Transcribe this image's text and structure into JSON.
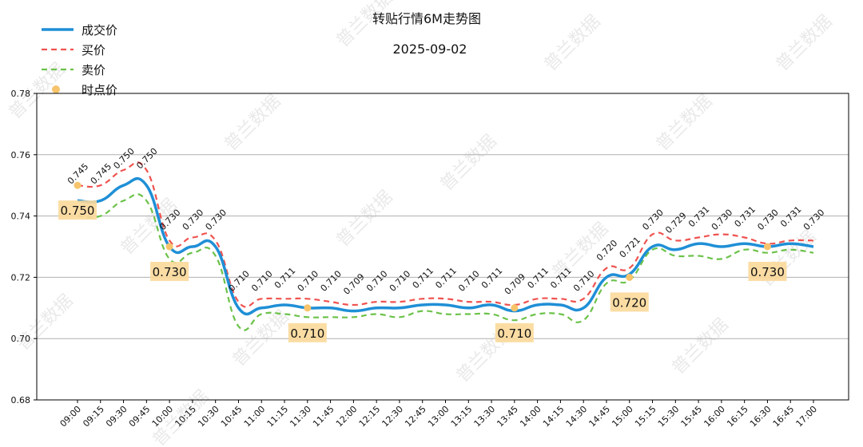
{
  "chart_data": {
    "type": "line",
    "title": "转贴行情6M走势图",
    "subtitle": "2025-09-02",
    "watermark": "普兰数据",
    "ylim": [
      0.68,
      0.78
    ],
    "yticks": [
      "0.68",
      "0.70",
      "0.72",
      "0.74",
      "0.76",
      "0.78"
    ],
    "grid": "horizontal",
    "legend_position": "top-left",
    "categories": [
      "09:00",
      "09:15",
      "09:30",
      "09:45",
      "10:00",
      "10:15",
      "10:30",
      "10:45",
      "11:00",
      "11:15",
      "11:30",
      "11:45",
      "12:00",
      "12:15",
      "12:30",
      "12:45",
      "13:00",
      "13:15",
      "13:30",
      "13:45",
      "14:00",
      "14:15",
      "14:30",
      "14:45",
      "15:00",
      "15:15",
      "15:30",
      "15:45",
      "16:00",
      "16:15",
      "16:30",
      "16:45",
      "17:00"
    ],
    "series": [
      {
        "name": "成交价",
        "style": "solid",
        "color": "#1f8fd6",
        "values": [
          0.745,
          0.745,
          0.75,
          0.75,
          0.73,
          0.73,
          0.73,
          0.71,
          0.71,
          0.711,
          0.71,
          0.71,
          0.709,
          0.71,
          0.71,
          0.711,
          0.711,
          0.71,
          0.711,
          0.709,
          0.711,
          0.711,
          0.71,
          0.72,
          0.721,
          0.73,
          0.729,
          0.731,
          0.73,
          0.731,
          0.73,
          0.731,
          0.73
        ]
      },
      {
        "name": "买价",
        "style": "dashed",
        "color": "#ef5350",
        "values": [
          0.75,
          0.75,
          0.755,
          0.755,
          0.732,
          0.733,
          0.732,
          0.712,
          0.713,
          0.713,
          0.713,
          0.712,
          0.711,
          0.712,
          0.712,
          0.713,
          0.713,
          0.712,
          0.712,
          0.711,
          0.713,
          0.713,
          0.713,
          0.723,
          0.723,
          0.734,
          0.732,
          0.733,
          0.734,
          0.733,
          0.731,
          0.732,
          0.732
        ]
      },
      {
        "name": "卖价",
        "style": "dashed",
        "color": "#6cc24a",
        "values": [
          0.74,
          0.74,
          0.745,
          0.745,
          0.726,
          0.728,
          0.727,
          0.704,
          0.708,
          0.708,
          0.707,
          0.707,
          0.707,
          0.708,
          0.707,
          0.709,
          0.708,
          0.708,
          0.708,
          0.706,
          0.708,
          0.708,
          0.706,
          0.718,
          0.719,
          0.729,
          0.727,
          0.727,
          0.726,
          0.729,
          0.728,
          0.729,
          0.728
        ]
      }
    ],
    "point_series": {
      "name": "时点价",
      "color": "#f7c46c",
      "points": [
        {
          "x": "09:00",
          "y": 0.75,
          "label": "0.750"
        },
        {
          "x": "10:00",
          "y": 0.73,
          "label": "0.730"
        },
        {
          "x": "11:30",
          "y": 0.71,
          "label": "0.710"
        },
        {
          "x": "13:45",
          "y": 0.71,
          "label": "0.710"
        },
        {
          "x": "15:00",
          "y": 0.72,
          "label": "0.720"
        },
        {
          "x": "16:30",
          "y": 0.73,
          "label": "0.730"
        }
      ]
    },
    "data_labels": [
      "0.745",
      "0.745",
      "0.750",
      "0.750",
      "0.730",
      "0.730",
      "0.730",
      "0.710",
      "0.710",
      "0.711",
      "0.710",
      "0.710",
      "0.709",
      "0.710",
      "0.710",
      "0.711",
      "0.711",
      "0.710",
      "0.711",
      "0.709",
      "0.711",
      "0.711",
      "0.710",
      "0.720",
      "0.721",
      "0.730",
      "0.729",
      "0.731",
      "0.730",
      "0.731",
      "0.730",
      "0.731",
      "0.730"
    ]
  }
}
